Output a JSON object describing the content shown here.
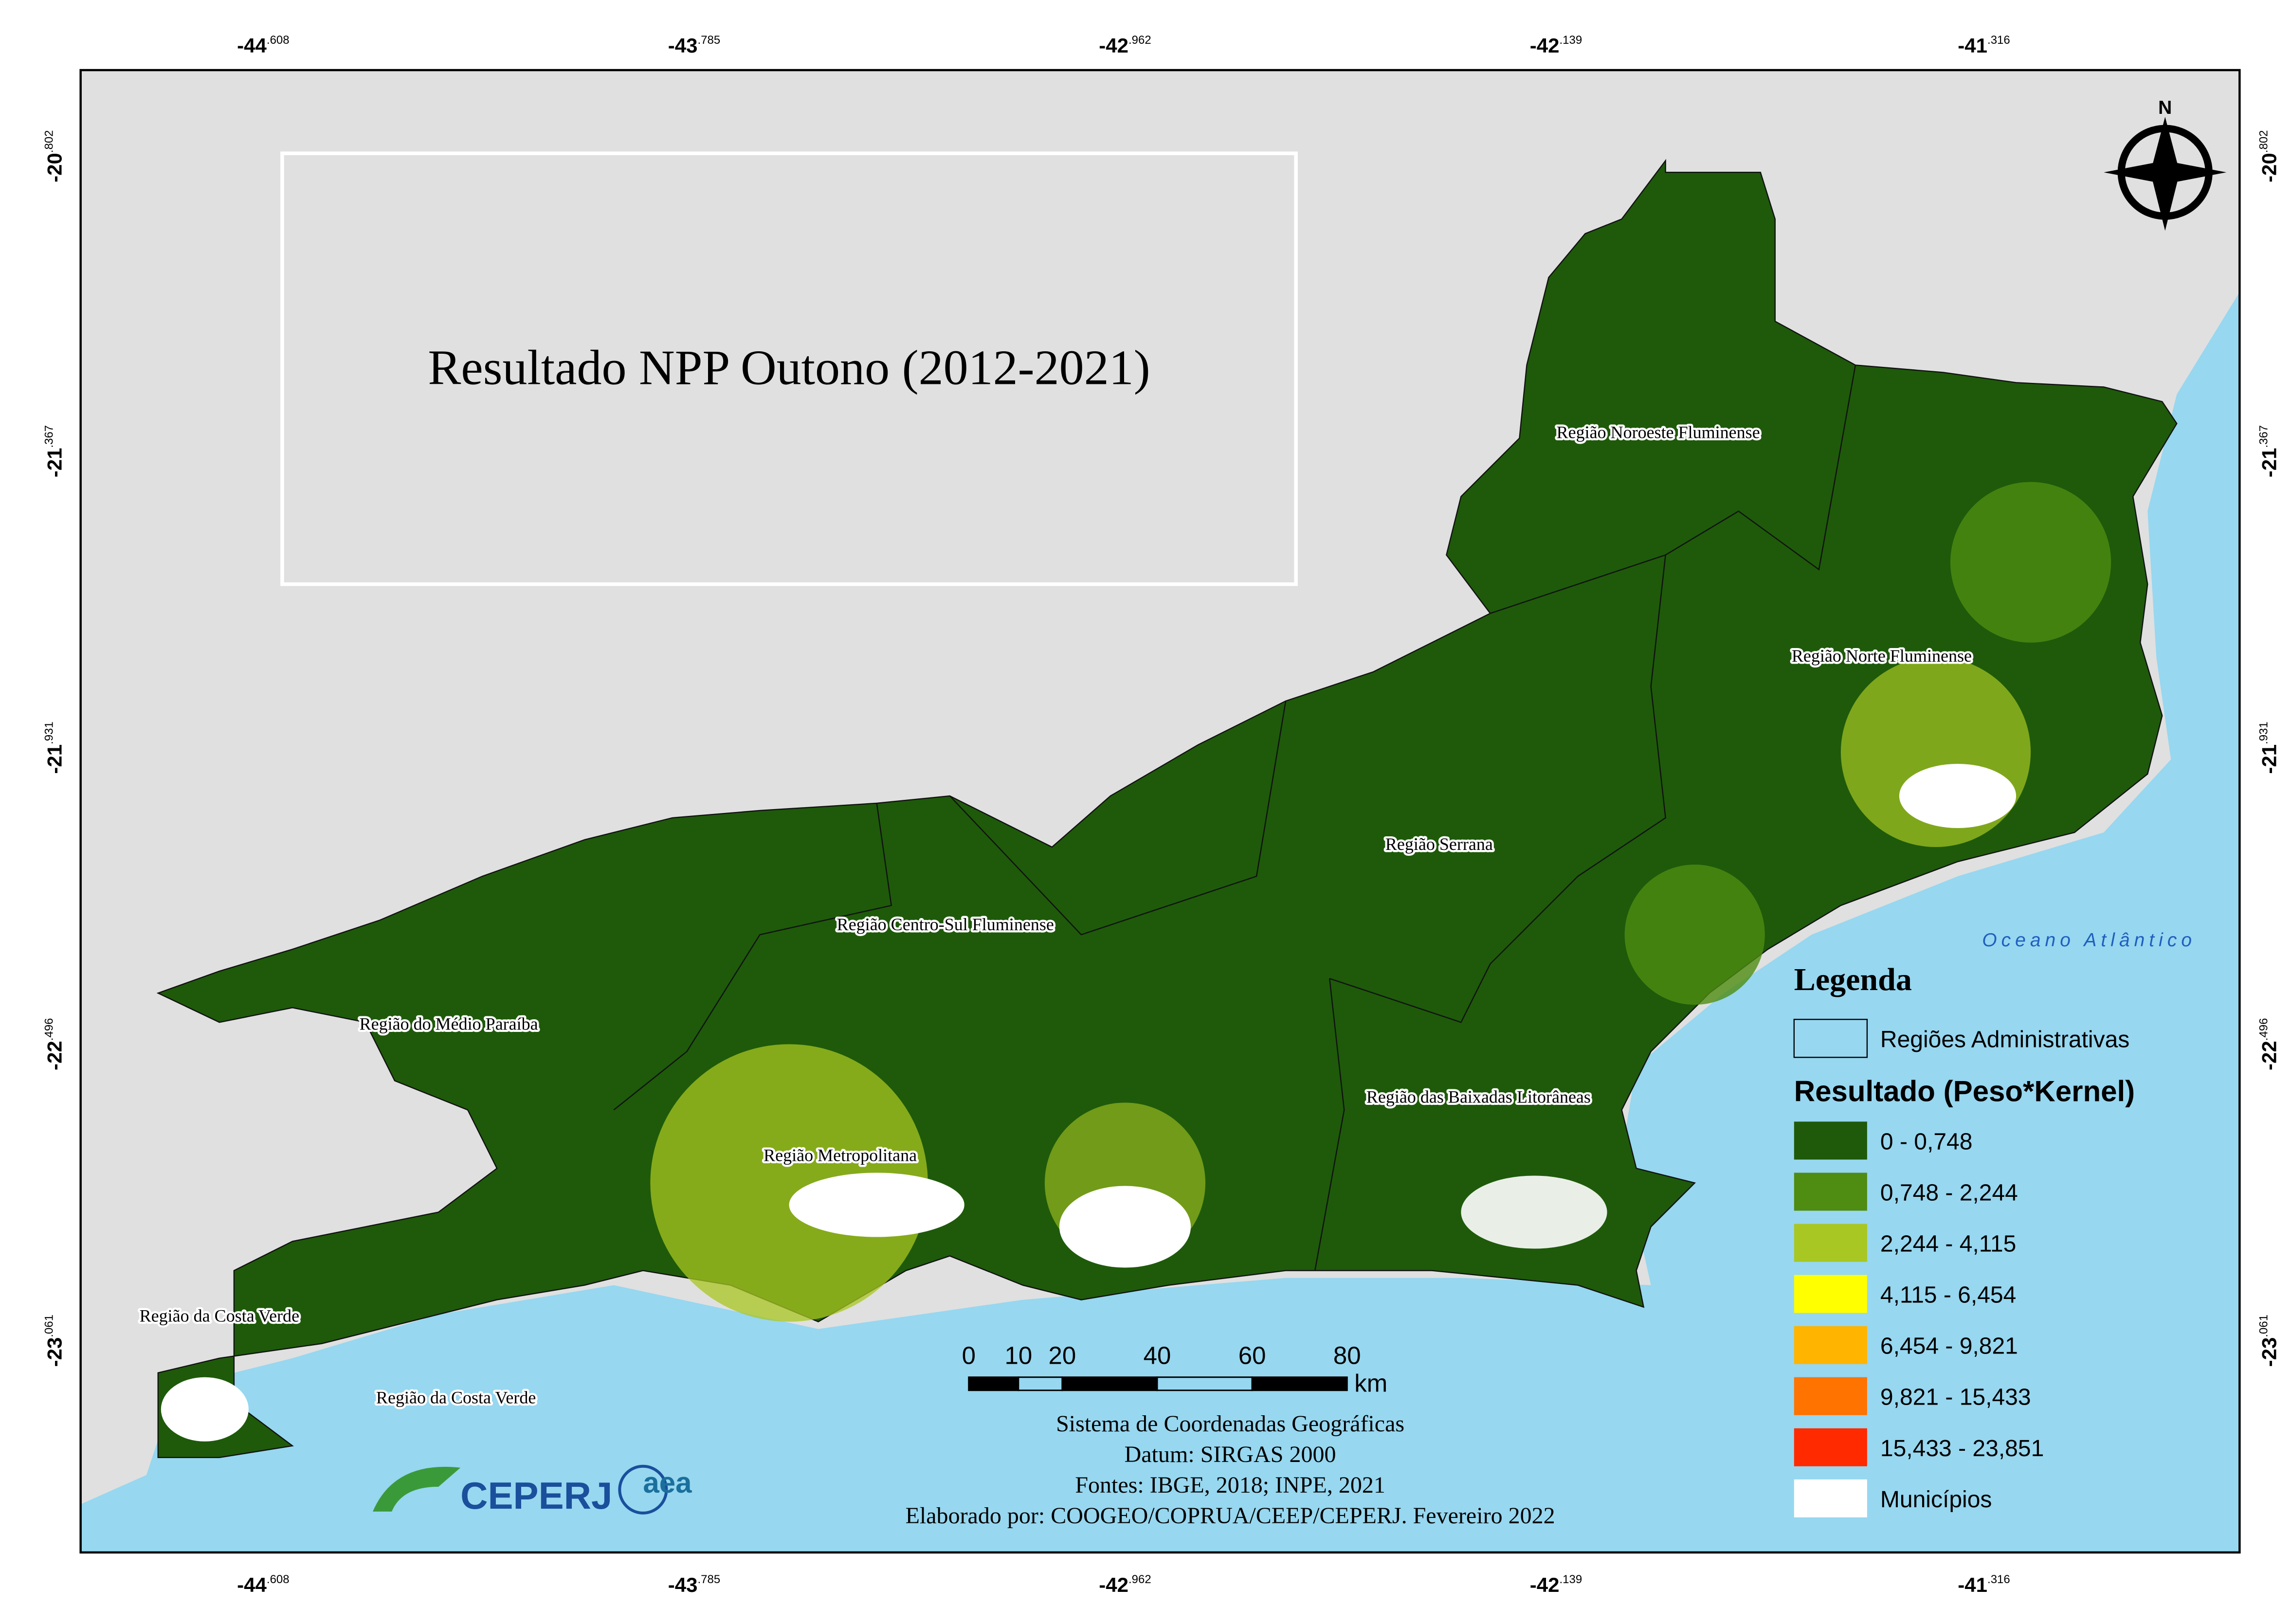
{
  "title": "Resultado NPP Outono (2012-2021)",
  "longitude_labels": [
    {
      "degrees": "-44",
      "decimal": ".608"
    },
    {
      "degrees": "-43",
      "decimal": ".785"
    },
    {
      "degrees": "-42",
      "decimal": ".962"
    },
    {
      "degrees": "-42",
      "decimal": ".139"
    },
    {
      "degrees": "-41",
      "decimal": ".316"
    }
  ],
  "latitude_labels": [
    {
      "degrees": "-20",
      "decimal": ".802"
    },
    {
      "degrees": "-21",
      "decimal": ".367"
    },
    {
      "degrees": "-21",
      "decimal": ".931"
    },
    {
      "degrees": "-22",
      "decimal": ".496"
    },
    {
      "degrees": "-23",
      "decimal": ".061"
    }
  ],
  "regions": [
    "Região Noroeste Fluminense",
    "Região Norte Fluminense",
    "Região Serrana",
    "Região Centro-Sul Fluminense",
    "Região do Médio Paraíba",
    "Região das Baixadas Litorâneas",
    "Região Metropolitana",
    "Região da Costa Verde",
    "Região da Costa Verde"
  ],
  "ocean_label": "Oceano Atlântico",
  "north_label": "N",
  "legend": {
    "title": "Legenda",
    "regions_label": "Regiões Administrativas",
    "result_title": "Resultado (Peso*Kernel)",
    "classes": [
      {
        "label": "0 - 0,748",
        "color": "#1e5a0a"
      },
      {
        "label": "0,748 - 2,244",
        "color": "#4e8c12"
      },
      {
        "label": "2,244 - 4,115",
        "color": "#a8c722"
      },
      {
        "label": "4,115 - 6,454",
        "color": "#ffff00"
      },
      {
        "label": "6,454 - 9,821",
        "color": "#ffb400"
      },
      {
        "label": "9,821 - 15,433",
        "color": "#ff7300"
      },
      {
        "label": "15,433 - 23,851",
        "color": "#ff2a00"
      },
      {
        "label": "Municípios",
        "color": "#ffffff"
      }
    ]
  },
  "scale": {
    "labels": [
      "0",
      "10",
      "20",
      "40",
      "60",
      "80"
    ],
    "unit": "km"
  },
  "credits": [
    "Sistema de Coordenadas Geográficas",
    "Datum: SIRGAS 2000",
    "Fontes: IBGE, 2018; INPE, 2021",
    "Elaborado por: COOGEO/COPRUA/CEEP/CEPERJ. Fevereiro 2022"
  ],
  "logos": [
    "CEPERJ",
    "aea"
  ]
}
